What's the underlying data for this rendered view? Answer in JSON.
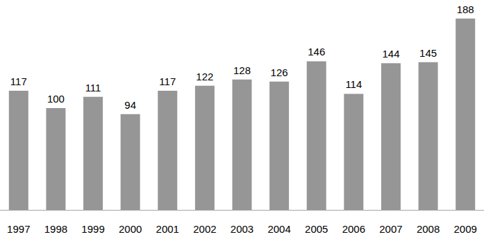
{
  "chart_data": {
    "type": "bar",
    "categories": [
      "1997",
      "1998",
      "1999",
      "2000",
      "2001",
      "2002",
      "2003",
      "2004",
      "2005",
      "2006",
      "2007",
      "2008",
      "2009"
    ],
    "values": [
      117,
      100,
      111,
      94,
      117,
      122,
      128,
      126,
      146,
      114,
      144,
      145,
      188
    ],
    "color": "#969696",
    "ylim": [
      0,
      200
    ],
    "grid": false,
    "data_labels": true,
    "tick_labels": "x"
  }
}
